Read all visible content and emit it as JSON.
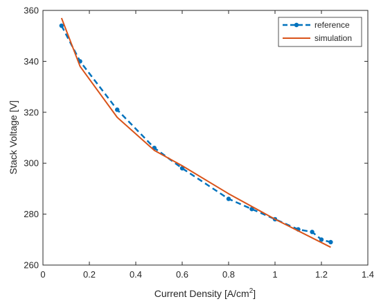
{
  "chart_data": {
    "type": "line",
    "xlabel": "Current Density [A/cm",
    "xlabel_sup": "2",
    "xlabel_end": "]",
    "ylabel": "Stack Voltage [V]",
    "xlim": [
      0,
      1.4
    ],
    "ylim": [
      260,
      360
    ],
    "xticks": [
      0,
      0.2,
      0.4,
      0.6,
      0.8,
      1,
      1.2,
      1.4
    ],
    "xtick_labels": [
      "0",
      "0.2",
      "0.4",
      "0.6",
      "0.8",
      "1",
      "1.2",
      "1.4"
    ],
    "yticks": [
      260,
      280,
      300,
      320,
      340,
      360
    ],
    "ytick_labels": [
      "260",
      "280",
      "300",
      "320",
      "340",
      "360"
    ],
    "grid": false,
    "legend_position": "top-right",
    "series": [
      {
        "name": "reference",
        "style": "dashed-with-markers",
        "color": "#0072BD",
        "x": [
          0.08,
          0.16,
          0.32,
          0.48,
          0.6,
          0.8,
          0.9,
          1.0,
          1.1,
          1.16,
          1.2,
          1.24
        ],
        "y": [
          354,
          340,
          321,
          306,
          298,
          286,
          282,
          278,
          274,
          273,
          270,
          269
        ]
      },
      {
        "name": "simulation",
        "style": "solid",
        "color": "#D95319",
        "x": [
          0.08,
          0.16,
          0.32,
          0.48,
          0.6,
          0.8,
          1.0,
          1.24
        ],
        "y": [
          357,
          338,
          318,
          305,
          299,
          288,
          278,
          267
        ]
      }
    ]
  }
}
